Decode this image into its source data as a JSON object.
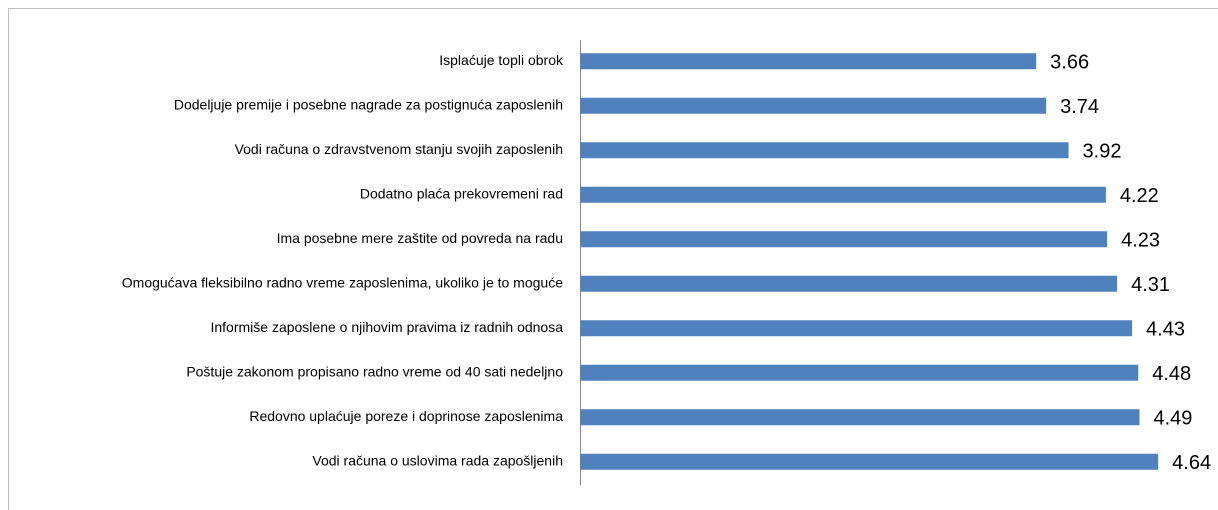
{
  "chart_data": {
    "type": "bar",
    "orientation": "horizontal",
    "categories": [
      "Isplaćuje topli obrok",
      "Dodeljuje premije i posebne nagrade za postignuća zaposlenih",
      "Vodi računa o zdravstvenom stanju svojih zaposlenih",
      "Dodatno plaća prekovremeni rad",
      "Ima posebne mere zaštite od povreda na radu",
      "Omogućava fleksibilno radno vreme zaposlenima, ukoliko je to moguće",
      "Informiše zaposlene o njihovim pravima iz radnih odnosa",
      "Poštuje zakonom propisano radno vreme od 40 sati nedeljno",
      "Redovno uplaćuje poreze i doprinose zaposlenima",
      "Vodi računa o uslovima rada zapošljenih"
    ],
    "values": [
      3.66,
      3.74,
      3.92,
      4.22,
      4.23,
      4.31,
      4.43,
      4.48,
      4.49,
      4.64
    ],
    "color": "#4f81bd",
    "xlim": [
      0,
      5
    ]
  }
}
